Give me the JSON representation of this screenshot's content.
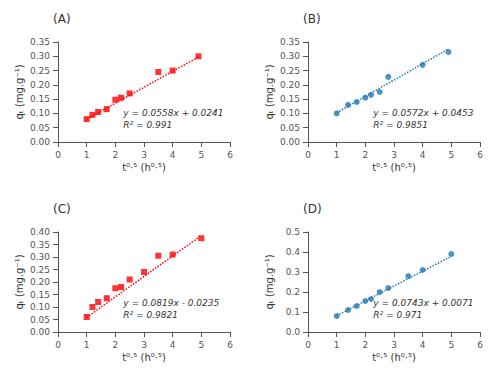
{
  "chart_data": [
    {
      "type": "scatter",
      "title": "(A)",
      "xlabel": "t⁰·⁵ (h⁰·⁵)",
      "ylabel": "qₜ (mg.g⁻¹)",
      "annotations": [
        "y = 0.0558x + 0.0241",
        "R² = 0.991"
      ],
      "grid": false,
      "series": [
        {
          "type": "scatter",
          "color": "#FF0000",
          "marker": "square",
          "x": [
            1.0,
            1.2,
            1.4,
            1.7,
            2.0,
            2.2,
            2.5,
            3.5,
            4.0,
            4.9
          ],
          "values": [
            0.08,
            0.095,
            0.105,
            0.115,
            0.148,
            0.155,
            0.17,
            0.245,
            0.25,
            0.3
          ]
        },
        {
          "type": "line",
          "color": "#FF0000",
          "line_style": "dotted",
          "x": [
            1.0,
            4.9
          ],
          "values": [
            0.0799,
            0.29752
          ]
        }
      ],
      "xlim": [
        0,
        6
      ],
      "xticks": [
        0,
        1,
        2,
        3,
        4,
        5,
        6
      ],
      "ylim": [
        0,
        0.35
      ],
      "yticks": [
        {
          "value": 0,
          "label": "0.00"
        },
        {
          "value": 0.05,
          "label": "0.05"
        },
        {
          "value": 0.1,
          "label": "0.10"
        },
        {
          "value": 0.15,
          "label": "0.15"
        },
        {
          "value": 0.2,
          "label": "0.20"
        },
        {
          "value": 0.25,
          "label": "0.25"
        },
        {
          "value": 0.3,
          "label": "0.30"
        },
        {
          "value": 0.35,
          "label": "0.35"
        }
      ]
    },
    {
      "type": "scatter",
      "title": "(B)",
      "xlabel": "t⁰·⁵ (h⁰·⁵)",
      "ylabel": "qₜ (mg.g⁻¹)",
      "annotations": [
        "y = 0.0572x + 0.0453",
        "R² = 0.9851"
      ],
      "grid": false,
      "series": [
        {
          "type": "scatter",
          "color": "#1F77B4",
          "marker": "circle",
          "x": [
            1.0,
            1.4,
            1.7,
            2.0,
            2.2,
            2.5,
            2.8,
            4.0,
            4.9
          ],
          "values": [
            0.1,
            0.13,
            0.14,
            0.155,
            0.165,
            0.175,
            0.228,
            0.27,
            0.315
          ]
        },
        {
          "type": "line",
          "color": "#1F77B4",
          "line_style": "dotted",
          "x": [
            1.0,
            4.9
          ],
          "values": [
            0.1025,
            0.32558
          ]
        }
      ],
      "xlim": [
        0,
        6
      ],
      "xticks": [
        0,
        1,
        2,
        3,
        4,
        5,
        6
      ],
      "ylim": [
        0,
        0.35
      ],
      "yticks": [
        {
          "value": 0,
          "label": "0.00"
        },
        {
          "value": 0.05,
          "label": "0.05"
        },
        {
          "value": 0.1,
          "label": "0.10"
        },
        {
          "value": 0.15,
          "label": "0.15"
        },
        {
          "value": 0.2,
          "label": "0.20"
        },
        {
          "value": 0.25,
          "label": "0.25"
        },
        {
          "value": 0.3,
          "label": "0.30"
        },
        {
          "value": 0.35,
          "label": "0.35"
        }
      ]
    },
    {
      "type": "scatter",
      "title": "(C)",
      "xlabel": "t⁰·⁵ (h⁰·⁵)",
      "ylabel": "qₜ (mg.g⁻¹)",
      "annotations": [
        "y = 0.0819x - 0.0235",
        "R² = 0.9821"
      ],
      "grid": false,
      "series": [
        {
          "type": "scatter",
          "color": "#FF0000",
          "marker": "square",
          "x": [
            1.0,
            1.2,
            1.4,
            1.7,
            2.0,
            2.2,
            2.5,
            3.0,
            3.5,
            4.0,
            5.0
          ],
          "values": [
            0.06,
            0.1,
            0.12,
            0.135,
            0.175,
            0.18,
            0.21,
            0.24,
            0.305,
            0.31,
            0.375
          ]
        },
        {
          "type": "line",
          "color": "#FF0000",
          "line_style": "dotted",
          "x": [
            1.0,
            5.0
          ],
          "values": [
            0.0584,
            0.386
          ]
        }
      ],
      "xlim": [
        0,
        6
      ],
      "xticks": [
        0,
        1,
        2,
        3,
        4,
        5,
        6
      ],
      "ylim": [
        0,
        0.4
      ],
      "yticks": [
        {
          "value": 0,
          "label": "0.00"
        },
        {
          "value": 0.05,
          "label": "0.05"
        },
        {
          "value": 0.1,
          "label": "0.10"
        },
        {
          "value": 0.15,
          "label": "0.15"
        },
        {
          "value": 0.2,
          "label": "0.20"
        },
        {
          "value": 0.25,
          "label": "0.25"
        },
        {
          "value": 0.3,
          "label": "0.30"
        },
        {
          "value": 0.35,
          "label": "0.35"
        },
        {
          "value": 0.4,
          "label": "0.40"
        }
      ]
    },
    {
      "type": "scatter",
      "title": "(D)",
      "xlabel": "t⁰·⁵ (h⁰·⁵)",
      "ylabel": "qₜ (mg.g⁻¹)",
      "annotations": [
        "y = 0.0743x + 0.0071",
        "R² = 0.971"
      ],
      "grid": false,
      "series": [
        {
          "type": "scatter",
          "color": "#1F77B4",
          "marker": "circle",
          "x": [
            1.0,
            1.4,
            1.7,
            2.0,
            2.2,
            2.5,
            2.8,
            3.5,
            4.0,
            5.0
          ],
          "values": [
            0.08,
            0.11,
            0.13,
            0.155,
            0.165,
            0.2,
            0.22,
            0.28,
            0.31,
            0.39
          ]
        },
        {
          "type": "line",
          "color": "#1F77B4",
          "line_style": "dotted",
          "x": [
            1.0,
            5.0
          ],
          "values": [
            0.0814,
            0.3786
          ]
        }
      ],
      "xlim": [
        0,
        6
      ],
      "xticks": [
        0,
        1,
        2,
        3,
        4,
        5,
        6
      ],
      "ylim": [
        0,
        0.5
      ],
      "yticks": [
        {
          "value": 0,
          "label": "0.0"
        },
        {
          "value": 0.1,
          "label": "0.1"
        },
        {
          "value": 0.2,
          "label": "0.2"
        },
        {
          "value": 0.3,
          "label": "0.3"
        },
        {
          "value": 0.4,
          "label": "0.4"
        },
        {
          "value": 0.5,
          "label": "0.5"
        }
      ]
    }
  ]
}
